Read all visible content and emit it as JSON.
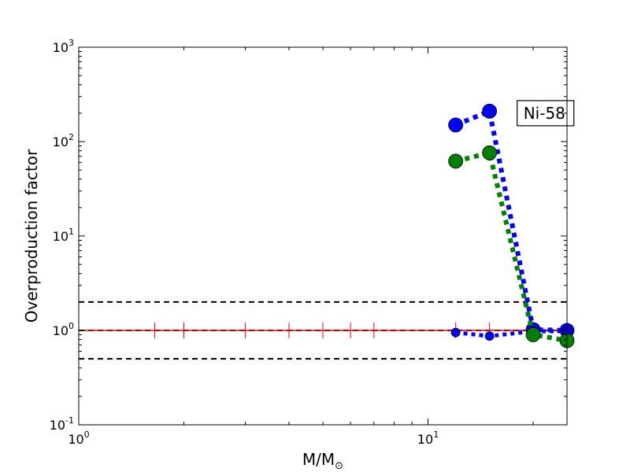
{
  "chart_data": {
    "type": "scatter",
    "xscale": "log",
    "yscale": "log",
    "xlim": [
      1,
      25
    ],
    "ylim": [
      0.1,
      1000
    ],
    "xlabel_main": "M/M",
    "xlabel_sub": "⊙",
    "ylabel": "Overproduction factor",
    "x_ticks": [
      {
        "base": "10",
        "exp": "0",
        "value": 1
      },
      {
        "base": "10",
        "exp": "1",
        "value": 10
      }
    ],
    "y_ticks": [
      {
        "base": "10",
        "exp": "-1",
        "value": 0.1
      },
      {
        "base": "10",
        "exp": "0",
        "value": 1
      },
      {
        "base": "10",
        "exp": "1",
        "value": 10
      },
      {
        "base": "10",
        "exp": "2",
        "value": 100
      },
      {
        "base": "10",
        "exp": "3",
        "value": 1000
      }
    ],
    "reference_lines": [
      {
        "y": 2.0,
        "style": "dashed",
        "color": "#000000"
      },
      {
        "y": 1.0,
        "style": "dashed",
        "color": "#000000"
      },
      {
        "y": 0.5,
        "style": "dashed",
        "color": "#000000"
      }
    ],
    "red_line": {
      "y": 1.0,
      "color": "#ff0000",
      "marker_x": [
        1.65,
        2.0,
        3.0,
        4.0,
        5.0,
        6.0,
        7.0,
        12.0,
        15.0,
        20.0
      ]
    },
    "series": [
      {
        "color": "#0000ff",
        "line_style": "dotted",
        "large_points": [
          {
            "x": 12,
            "y": 150
          },
          {
            "x": 15,
            "y": 210
          },
          {
            "x": 20,
            "y": 1.02
          },
          {
            "x": 25,
            "y": 1.0
          }
        ],
        "small_points": [
          {
            "x": 12,
            "y": 0.95
          },
          {
            "x": 15,
            "y": 0.87
          },
          {
            "x": 20,
            "y": 0.98
          },
          {
            "x": 25,
            "y": 0.98
          }
        ]
      },
      {
        "color": "#008000",
        "line_style": "dotted",
        "large_points": [
          {
            "x": 12,
            "y": 62
          },
          {
            "x": 15,
            "y": 76
          },
          {
            "x": 20,
            "y": 0.9
          },
          {
            "x": 25,
            "y": 0.78
          }
        ]
      }
    ],
    "annotation": {
      "text": "Ni-58",
      "x": 18,
      "y": 200
    }
  }
}
